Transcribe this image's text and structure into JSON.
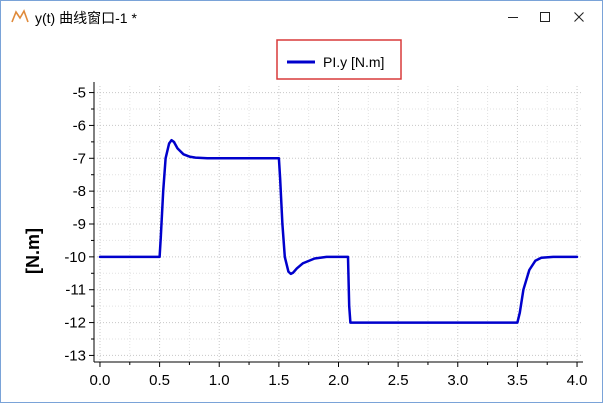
{
  "window": {
    "title": "y(t) 曲线窗口-1 *",
    "icons": {
      "app": "curve-chart-icon",
      "minimize": "minimize-icon",
      "maximize": "maximize-icon",
      "close": "close-icon"
    }
  },
  "colors": {
    "series": "#0000cc",
    "legend_border": "#d83a3a",
    "grid": "#c8c8c8",
    "window_border": "#7aa3d8"
  },
  "chart_data": {
    "type": "line",
    "title": "",
    "xlabel": "",
    "ylabel": "[N.m]",
    "xlim": [
      -0.05,
      4.05
    ],
    "ylim": [
      -13.2,
      -4.8
    ],
    "x_ticks": [
      0.0,
      0.5,
      1.0,
      1.5,
      2.0,
      2.5,
      3.0,
      3.5,
      4.0
    ],
    "x_tick_labels": [
      "0.0",
      "0.5",
      "1.0",
      "1.5",
      "2.0",
      "2.5",
      "3.0",
      "3.5",
      "4.0"
    ],
    "y_ticks": [
      -5,
      -6,
      -7,
      -8,
      -9,
      -10,
      -11,
      -12,
      -13
    ],
    "y_tick_labels": [
      "-5",
      "-6",
      "-7",
      "-8",
      "-9",
      "-10",
      "-11",
      "-12",
      "-13"
    ],
    "grid": true,
    "legend_position": "top-center",
    "series": [
      {
        "name": "PI.y [N.m]",
        "x": [
          0.0,
          0.5,
          0.51,
          0.53,
          0.55,
          0.58,
          0.6,
          0.62,
          0.65,
          0.7,
          0.75,
          0.8,
          0.9,
          1.0,
          1.2,
          1.5,
          1.51,
          1.53,
          1.55,
          1.58,
          1.6,
          1.62,
          1.65,
          1.7,
          1.8,
          1.9,
          2.0,
          2.08,
          2.09,
          2.1,
          2.2,
          3.0,
          3.5,
          3.52,
          3.55,
          3.6,
          3.65,
          3.7,
          3.8,
          3.9,
          4.0
        ],
        "y": [
          -10.0,
          -10.0,
          -9.4,
          -8.0,
          -7.0,
          -6.55,
          -6.45,
          -6.5,
          -6.7,
          -6.88,
          -6.95,
          -6.98,
          -7.0,
          -7.0,
          -7.0,
          -7.0,
          -7.6,
          -9.0,
          -10.0,
          -10.45,
          -10.52,
          -10.48,
          -10.35,
          -10.2,
          -10.05,
          -10.0,
          -10.0,
          -10.0,
          -11.5,
          -12.0,
          -12.0,
          -12.0,
          -12.0,
          -11.7,
          -11.0,
          -10.4,
          -10.12,
          -10.03,
          -10.0,
          -10.0,
          -10.0
        ]
      }
    ]
  }
}
